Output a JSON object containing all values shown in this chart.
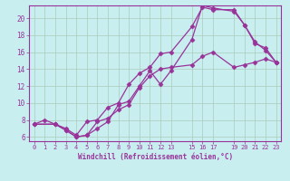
{
  "xlabel": "Windchill (Refroidissement éolien,°C)",
  "bg_color": "#c8eef0",
  "line_color": "#993399",
  "marker": "D",
  "markersize": 2.5,
  "linewidth": 0.9,
  "xlim": [
    -0.5,
    23.5
  ],
  "ylim": [
    5.5,
    21.5
  ],
  "xticks": [
    0,
    1,
    2,
    3,
    4,
    5,
    6,
    7,
    8,
    9,
    10,
    11,
    12,
    13,
    15,
    16,
    17,
    19,
    20,
    21,
    22,
    23
  ],
  "yticks": [
    6,
    8,
    10,
    12,
    14,
    16,
    18,
    20
  ],
  "line1_x": [
    0,
    1,
    2,
    3,
    4,
    5,
    6,
    7,
    8,
    9,
    10,
    11,
    12,
    13,
    15,
    16,
    17,
    19,
    20,
    21,
    22,
    23
  ],
  "line1_y": [
    7.5,
    8.0,
    7.5,
    7.0,
    6.2,
    7.8,
    8.0,
    9.5,
    10.0,
    12.2,
    13.5,
    14.2,
    15.8,
    16.0,
    19.0,
    21.3,
    21.0,
    21.0,
    19.2,
    17.2,
    16.2,
    14.8
  ],
  "line2_x": [
    0,
    2,
    3,
    4,
    5,
    6,
    7,
    8,
    9,
    10,
    11,
    12,
    13,
    15,
    16,
    17,
    19,
    20,
    21,
    22,
    23
  ],
  "line2_y": [
    7.5,
    7.5,
    6.8,
    6.0,
    6.2,
    7.0,
    7.8,
    9.8,
    10.2,
    12.0,
    13.8,
    12.2,
    13.8,
    17.5,
    21.5,
    21.2,
    20.8,
    19.2,
    17.0,
    16.5,
    14.8
  ],
  "line3_x": [
    0,
    2,
    3,
    4,
    5,
    6,
    7,
    8,
    9,
    10,
    11,
    12,
    13,
    15,
    16,
    17,
    19,
    20,
    21,
    22,
    23
  ],
  "line3_y": [
    7.5,
    7.5,
    6.8,
    6.0,
    6.2,
    7.8,
    8.2,
    9.2,
    9.8,
    11.8,
    13.2,
    14.0,
    14.2,
    14.5,
    15.5,
    16.0,
    14.2,
    14.5,
    14.8,
    15.2,
    14.8
  ]
}
